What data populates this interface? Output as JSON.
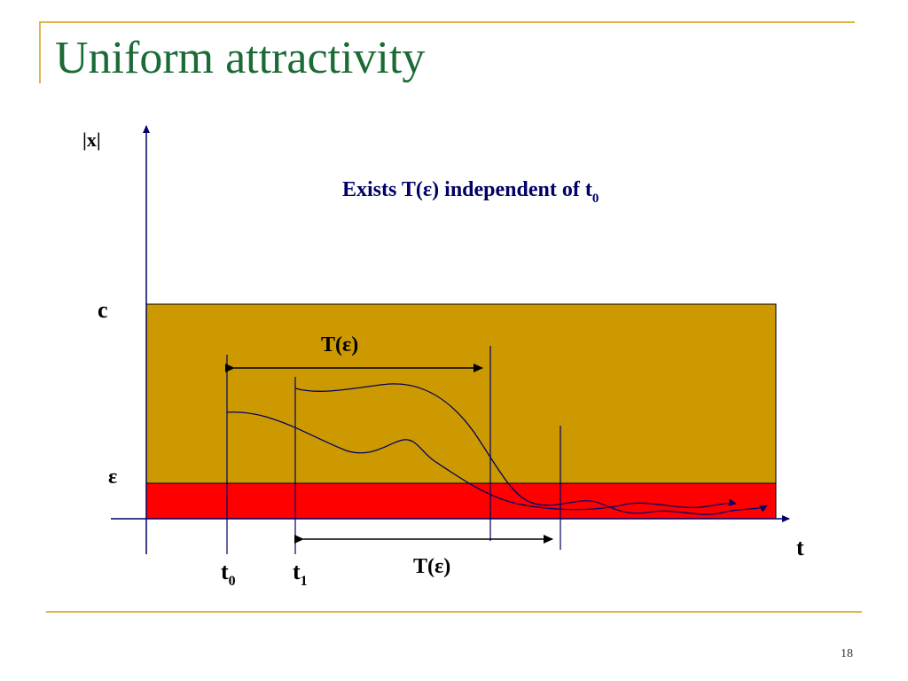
{
  "slide": {
    "title": "Uniform attractivity",
    "page_number": "18"
  },
  "diagram": {
    "y_axis_label": "|x|",
    "x_axis_label": "t",
    "level_c_label": "c",
    "level_epsilon_label": "ε",
    "caption_prefix": "Exists T(ε) independent of t",
    "caption_subscript": "0",
    "interval_label_upper": "T(ε)",
    "interval_label_lower": "T(ε)",
    "t0_label": "t",
    "t0_subscript": "0",
    "t1_label": "t",
    "t1_subscript": "1",
    "colors": {
      "outer_band": "#cc9900",
      "epsilon_band": "#ff0000",
      "curves": "#000066",
      "frame": "#e0b54a",
      "title": "#1b6b37"
    }
  }
}
